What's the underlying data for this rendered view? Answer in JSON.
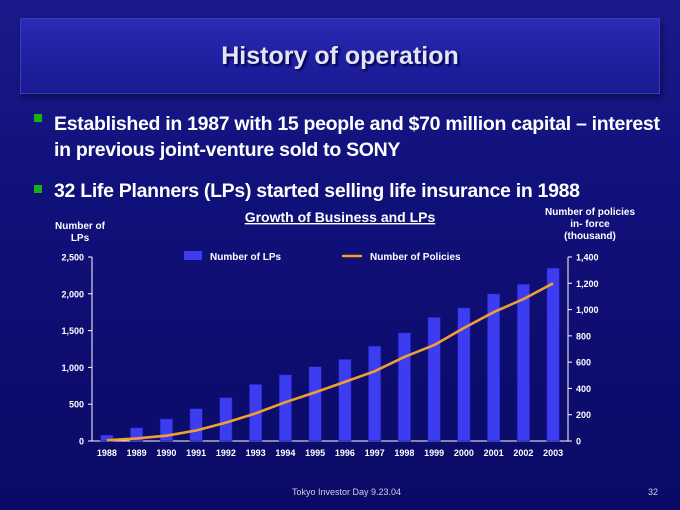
{
  "slide": {
    "title": "History of operation",
    "bullets": [
      "Established in 1987 with 15 people and $70 million capital – interest in previous joint-venture sold to SONY",
      "32 Life Planners (LPs) started selling life insurance in 1988"
    ],
    "footer": "Tokyo Investor Day 9.23.04",
    "page_number": "32"
  },
  "colors": {
    "bar": "#3c3cf0",
    "line": "#f0a030",
    "bullet": "#18b018"
  },
  "chart_data": {
    "type": "bar",
    "title": "Growth of Business and LPs",
    "left_axis_label": [
      "Number of",
      "LPs"
    ],
    "right_axis_label": [
      "Number of policies",
      "in- force",
      "(thousand)"
    ],
    "categories": [
      "1988",
      "1989",
      "1990",
      "1991",
      "1992",
      "1993",
      "1994",
      "1995",
      "1996",
      "1997",
      "1998",
      "1999",
      "2000",
      "2001",
      "2002",
      "2003"
    ],
    "series": [
      {
        "name": "Number of LPs",
        "type": "bar",
        "axis": "left",
        "values": [
          80,
          180,
          300,
          440,
          590,
          770,
          900,
          1010,
          1110,
          1290,
          1470,
          1680,
          1810,
          2000,
          2130,
          2350
        ]
      },
      {
        "name": "Number of Policies",
        "type": "line",
        "axis": "right",
        "values": [
          5,
          20,
          40,
          80,
          140,
          210,
          295,
          370,
          450,
          530,
          640,
          730,
          860,
          980,
          1080,
          1200
        ]
      }
    ],
    "ylim_left": [
      0,
      2500
    ],
    "yticks_left": [
      "0",
      "500",
      "1,000",
      "1,500",
      "2,000",
      "2,500"
    ],
    "ylim_right": [
      0,
      1400
    ],
    "yticks_right": [
      "0",
      "200",
      "400",
      "600",
      "800",
      "1,000",
      "1,200",
      "1,400"
    ],
    "legend_position": "top",
    "grid": false
  }
}
